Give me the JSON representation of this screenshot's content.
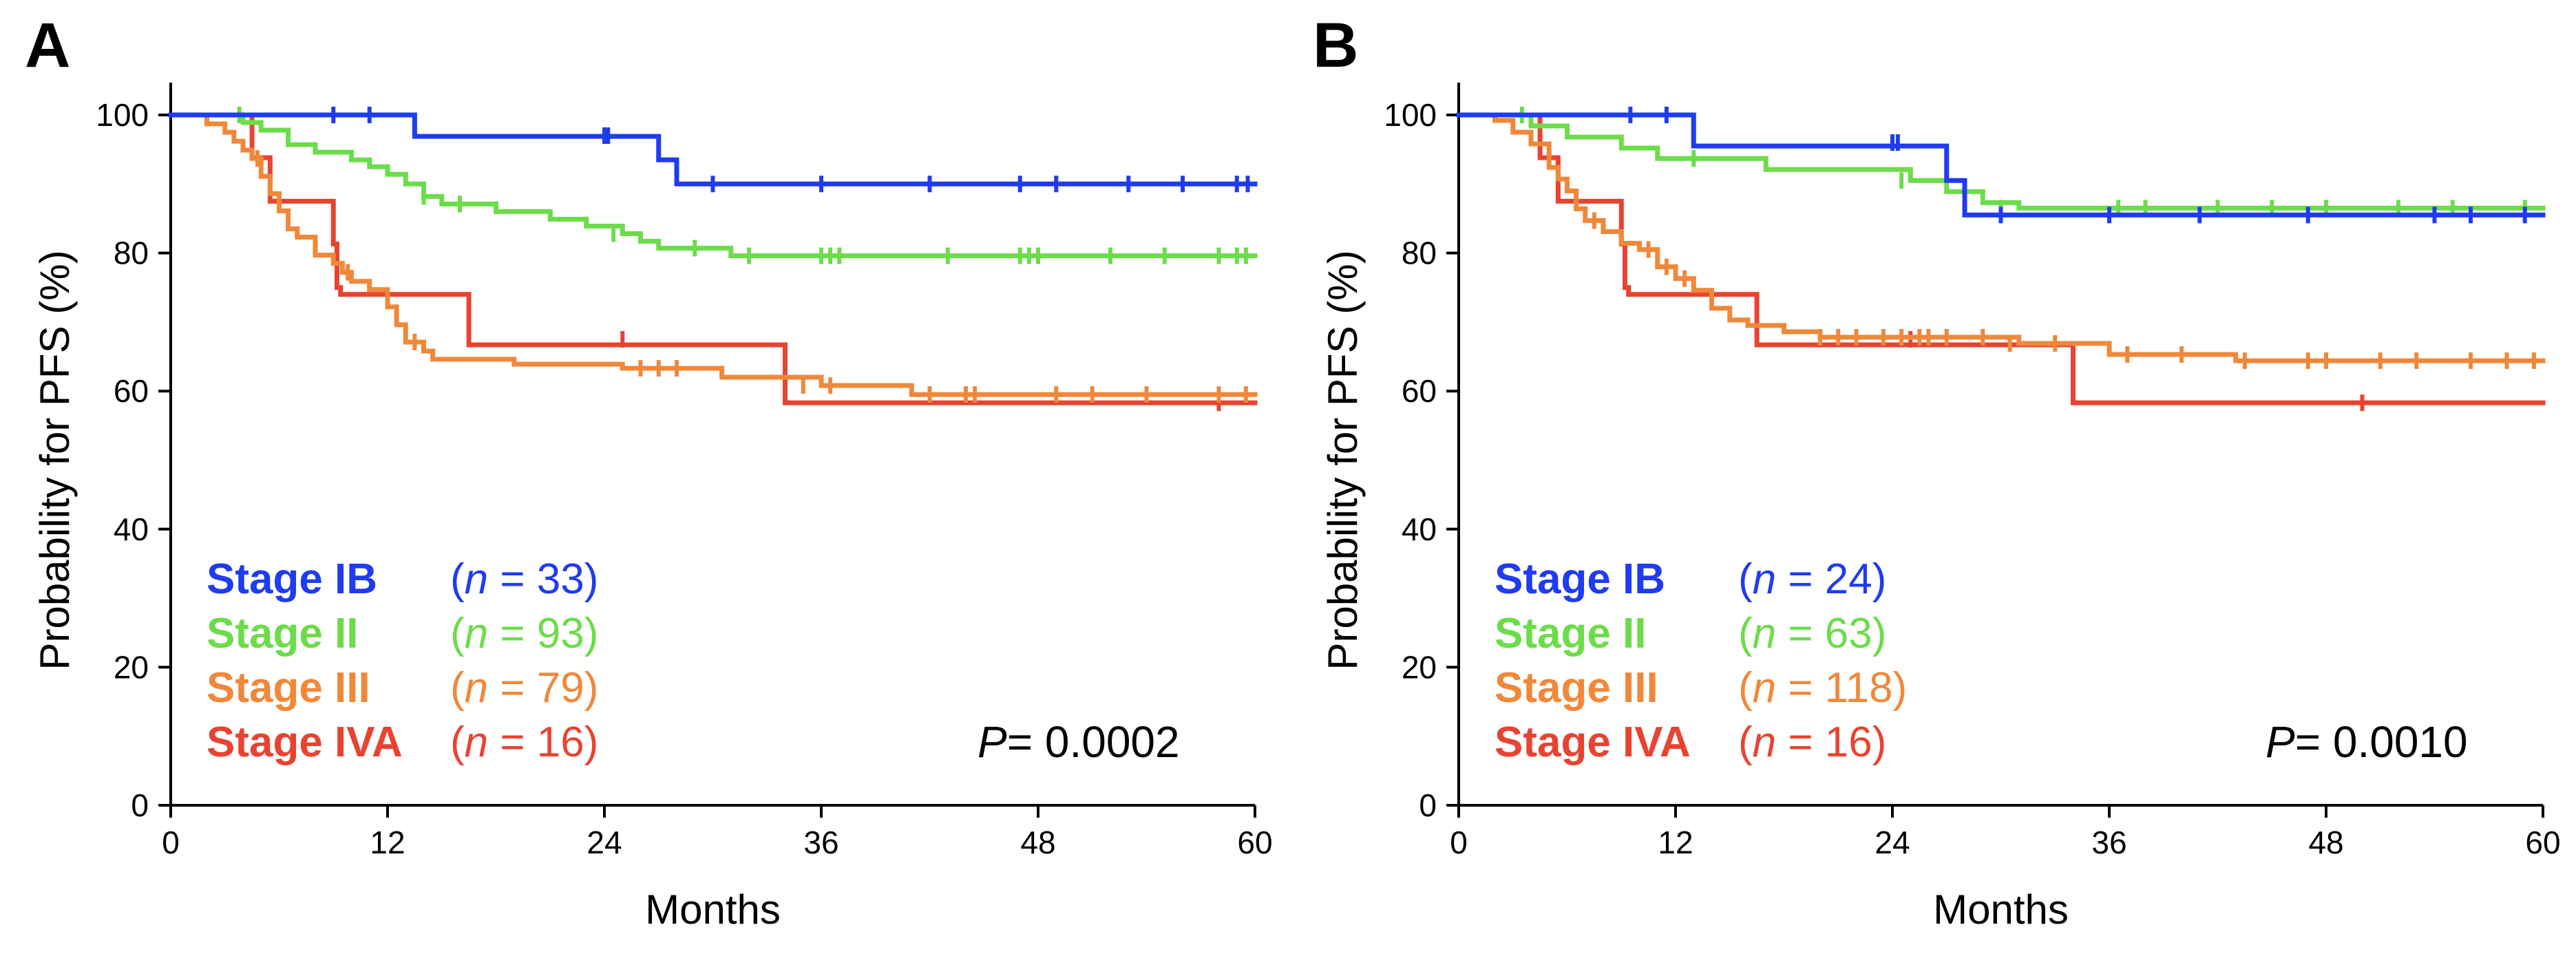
{
  "chart_data": [
    {
      "type": "line",
      "subtype": "kaplan-meier",
      "panel": "A",
      "xlabel": "Months",
      "ylabel": "Probability for PFS (%)",
      "xlim": [
        0,
        60
      ],
      "ylim": [
        0,
        100
      ],
      "xticks": [
        "0",
        "12",
        "24",
        "36",
        "48",
        "60"
      ],
      "yticks": [
        "0",
        "20",
        "40",
        "60",
        "80",
        "100"
      ],
      "p_label": "P",
      "p_value": "= 0.0002",
      "legend": [
        {
          "stage": "Stage IB",
          "n_open": "(",
          "n_var": "n",
          "n_rest": " = 33)"
        },
        {
          "stage": "Stage II",
          "n_open": "(",
          "n_var": "n",
          "n_rest": " = 93)"
        },
        {
          "stage": "Stage III",
          "n_open": "(",
          "n_var": "n",
          "n_rest": " = 79)"
        },
        {
          "stage": "Stage IVA",
          "n_open": "(",
          "n_var": "n",
          "n_rest": " = 16)"
        }
      ],
      "series": [
        {
          "name": "Stage IB",
          "color": "#1f3cf0",
          "steps": [
            [
              0,
              100
            ],
            [
              13.5,
              96.9
            ],
            [
              27,
              93.5
            ],
            [
              28,
              90
            ],
            [
              60,
              90
            ]
          ],
          "censor": [
            [
              9,
              100
            ],
            [
              11,
              100
            ],
            [
              24,
              97
            ],
            [
              24.2,
              97
            ],
            [
              30,
              90
            ],
            [
              36,
              90
            ],
            [
              42,
              90
            ],
            [
              47,
              90
            ],
            [
              49,
              90
            ],
            [
              53,
              90
            ],
            [
              56,
              90
            ],
            [
              59,
              90
            ],
            [
              59.6,
              90
            ]
          ]
        },
        {
          "name": "Stage II",
          "color": "#6cdc4a",
          "steps": [
            [
              0,
              100
            ],
            [
              4,
              98.9
            ],
            [
              5,
              97.8
            ],
            [
              6.5,
              95.7
            ],
            [
              8,
              94.6
            ],
            [
              10,
              93.5
            ],
            [
              11,
              92.5
            ],
            [
              12,
              91.4
            ],
            [
              13,
              90
            ],
            [
              14,
              88.2
            ],
            [
              15,
              87.1
            ],
            [
              18,
              86
            ],
            [
              21,
              84.9
            ],
            [
              23,
              83.9
            ],
            [
              25,
              82.8
            ],
            [
              26,
              81.7
            ],
            [
              27,
              80.7
            ],
            [
              31,
              79.6
            ],
            [
              60,
              79.6
            ]
          ],
          "censor": [
            [
              3.8,
              100
            ],
            [
              14,
              88.2
            ],
            [
              16,
              87.1
            ],
            [
              24.5,
              82.8
            ],
            [
              29,
              80.7
            ],
            [
              32,
              79.6
            ],
            [
              36,
              79.6
            ],
            [
              36.5,
              79.6
            ],
            [
              37,
              79.6
            ],
            [
              43,
              79.6
            ],
            [
              47,
              79.6
            ],
            [
              47.5,
              79.6
            ],
            [
              48,
              79.6
            ],
            [
              52,
              79.6
            ],
            [
              55,
              79.6
            ],
            [
              58,
              79.6
            ],
            [
              59,
              79.6
            ],
            [
              59.5,
              79.6
            ]
          ]
        },
        {
          "name": "Stage III",
          "color": "#f0883a",
          "steps": [
            [
              0,
              100
            ],
            [
              2,
              98.7
            ],
            [
              3,
              97.5
            ],
            [
              3.5,
              96.2
            ],
            [
              4,
              94.9
            ],
            [
              4.5,
              93.7
            ],
            [
              5,
              91.1
            ],
            [
              5.5,
              88.6
            ],
            [
              6,
              86.1
            ],
            [
              6.5,
              83.5
            ],
            [
              7,
              82.3
            ],
            [
              8,
              79.7
            ],
            [
              9,
              78.5
            ],
            [
              9.5,
              77.2
            ],
            [
              10,
              75.9
            ],
            [
              11,
              74.7
            ],
            [
              12,
              72.2
            ],
            [
              12.5,
              69.6
            ],
            [
              13,
              67.1
            ],
            [
              14,
              65.8
            ],
            [
              14.5,
              64.6
            ],
            [
              18,
              64.6
            ],
            [
              19,
              63.9
            ],
            [
              24,
              63.9
            ],
            [
              25,
              63.3
            ],
            [
              30,
              63.3
            ],
            [
              30.5,
              62
            ],
            [
              36,
              60.8
            ],
            [
              41,
              59.5
            ],
            [
              60,
              59.5
            ]
          ],
          "censor": [
            [
              4.8,
              93.7
            ],
            [
              9.8,
              77.2
            ],
            [
              13.5,
              67.1
            ],
            [
              26,
              63.3
            ],
            [
              27,
              63.3
            ],
            [
              28,
              63.3
            ],
            [
              35,
              60.8
            ],
            [
              36.5,
              60.8
            ],
            [
              42,
              59.5
            ],
            [
              44,
              59.5
            ],
            [
              44.5,
              59.5
            ],
            [
              49,
              59.5
            ],
            [
              51,
              59.5
            ],
            [
              54,
              59.5
            ],
            [
              58,
              59.5
            ],
            [
              59.5,
              59.5
            ]
          ]
        },
        {
          "name": "Stage IVA",
          "color": "#e84330",
          "steps": [
            [
              0,
              100
            ],
            [
              4.5,
              93.8
            ],
            [
              5.5,
              87.5
            ],
            [
              9,
              81.3
            ],
            [
              9.2,
              75
            ],
            [
              9.4,
              74
            ],
            [
              16.5,
              66.7
            ],
            [
              34,
              58.3
            ],
            [
              60,
              58.3
            ]
          ],
          "censor": [
            [
              25,
              67.5
            ],
            [
              58,
              58.3
            ]
          ]
        }
      ]
    },
    {
      "type": "line",
      "subtype": "kaplan-meier",
      "panel": "B",
      "xlabel": "Months",
      "ylabel": "Probability for PFS (%)",
      "xlim": [
        0,
        60
      ],
      "ylim": [
        0,
        100
      ],
      "xticks": [
        "0",
        "12",
        "24",
        "36",
        "48",
        "60"
      ],
      "yticks": [
        "0",
        "20",
        "40",
        "60",
        "80",
        "100"
      ],
      "p_label": "P",
      "p_value": "= 0.0010",
      "legend": [
        {
          "stage": "Stage IB",
          "n_open": "(",
          "n_var": "n",
          "n_rest": " = 24)"
        },
        {
          "stage": "Stage II",
          "n_open": "(",
          "n_var": "n",
          "n_rest": " = 63)"
        },
        {
          "stage": "Stage III",
          "n_open": "(",
          "n_var": "n",
          "n_rest": " = 118)"
        },
        {
          "stage": "Stage IVA",
          "n_open": "(",
          "n_var": "n",
          "n_rest": " = 16)"
        }
      ],
      "series": [
        {
          "name": "Stage IB",
          "color": "#1f3cf0",
          "steps": [
            [
              0,
              100
            ],
            [
              13,
              95.5
            ],
            [
              27,
              90.5
            ],
            [
              28,
              85.5
            ],
            [
              60,
              85.5
            ]
          ],
          "censor": [
            [
              9.5,
              100
            ],
            [
              11.5,
              100
            ],
            [
              24,
              96
            ],
            [
              24.3,
              96
            ],
            [
              30,
              85.5
            ],
            [
              36,
              85.5
            ],
            [
              41,
              85.5
            ],
            [
              47,
              85.5
            ],
            [
              54,
              85.5
            ],
            [
              56,
              85.5
            ],
            [
              59,
              85.5
            ]
          ]
        },
        {
          "name": "Stage II",
          "color": "#6cdc4a",
          "steps": [
            [
              0,
              100
            ],
            [
              4,
              98.4
            ],
            [
              6,
              96.8
            ],
            [
              9,
              95.2
            ],
            [
              11,
              93.7
            ],
            [
              17,
              92.1
            ],
            [
              25,
              90.5
            ],
            [
              27,
              88.9
            ],
            [
              29,
              87.3
            ],
            [
              31,
              86.5
            ],
            [
              60,
              86.5
            ]
          ],
          "censor": [
            [
              3.5,
              100
            ],
            [
              13,
              93.7
            ],
            [
              24.5,
              90.5
            ],
            [
              30,
              86.5
            ],
            [
              36.5,
              86.5
            ],
            [
              38,
              86.5
            ],
            [
              42,
              86.5
            ],
            [
              45,
              86.5
            ],
            [
              48,
              86.5
            ],
            [
              52,
              86.5
            ],
            [
              55,
              86.5
            ],
            [
              59,
              86.5
            ]
          ]
        },
        {
          "name": "Stage III",
          "color": "#f0883a",
          "steps": [
            [
              0,
              100
            ],
            [
              2,
              99.2
            ],
            [
              3,
              97.5
            ],
            [
              4,
              95.8
            ],
            [
              5,
              92.4
            ],
            [
              5.5,
              90.7
            ],
            [
              6,
              89
            ],
            [
              6.5,
              86.4
            ],
            [
              7,
              84.7
            ],
            [
              8,
              83.1
            ],
            [
              9,
              81.4
            ],
            [
              10,
              80.5
            ],
            [
              11,
              78
            ],
            [
              12,
              76.3
            ],
            [
              13,
              74.6
            ],
            [
              14,
              72
            ],
            [
              15,
              70.3
            ],
            [
              16,
              69.5
            ],
            [
              18,
              68.6
            ],
            [
              20,
              67.8
            ],
            [
              30,
              67.8
            ],
            [
              31,
              66.9
            ],
            [
              36,
              65.3
            ],
            [
              43,
              64.4
            ],
            [
              60,
              64.4
            ]
          ],
          "censor": [
            [
              7.5,
              84.7
            ],
            [
              10.5,
              80.5
            ],
            [
              11.5,
              78
            ],
            [
              12.5,
              76.3
            ],
            [
              20,
              67.8
            ],
            [
              21,
              67.8
            ],
            [
              22,
              67.8
            ],
            [
              23.5,
              67.8
            ],
            [
              24.5,
              67.8
            ],
            [
              25.5,
              67.8
            ],
            [
              26,
              67.8
            ],
            [
              27,
              67.8
            ],
            [
              29,
              67.8
            ],
            [
              30.5,
              66.9
            ],
            [
              33,
              66.9
            ],
            [
              37,
              65.3
            ],
            [
              40,
              65.3
            ],
            [
              43.5,
              64.4
            ],
            [
              47,
              64.4
            ],
            [
              48,
              64.4
            ],
            [
              51,
              64.4
            ],
            [
              53,
              64.4
            ],
            [
              56,
              64.4
            ],
            [
              58,
              64.4
            ],
            [
              59.5,
              64.4
            ]
          ]
        },
        {
          "name": "Stage IVA",
          "color": "#e84330",
          "steps": [
            [
              0,
              100
            ],
            [
              4.5,
              93.8
            ],
            [
              5.5,
              87.5
            ],
            [
              9,
              81.3
            ],
            [
              9.2,
              75
            ],
            [
              9.4,
              74
            ],
            [
              16.5,
              66.7
            ],
            [
              34,
              58.3
            ],
            [
              60,
              58.3
            ]
          ],
          "censor": [
            [
              25,
              67.5
            ],
            [
              50,
              58.3
            ]
          ]
        }
      ]
    }
  ]
}
